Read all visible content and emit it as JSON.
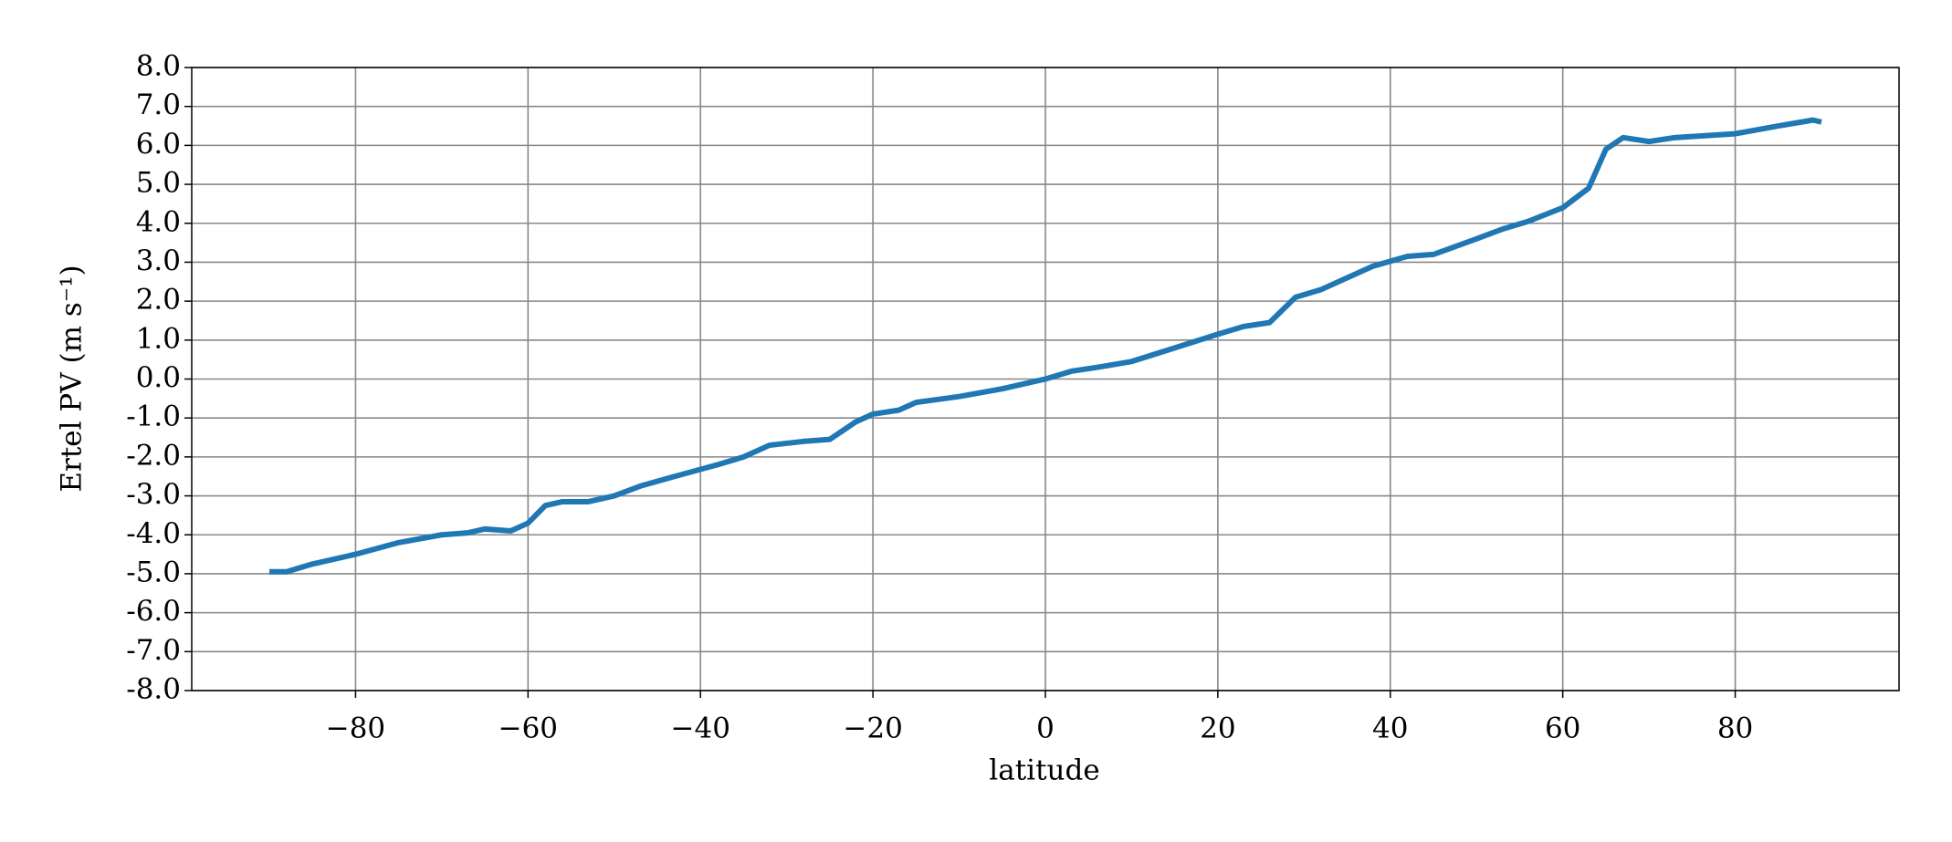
{
  "chart_data": {
    "type": "line",
    "xlabel": "latitude",
    "ylabel": "Ertel PV (m s⁻¹)",
    "series": [
      {
        "name": "Ertel PV",
        "color": "#1f77b4",
        "x": [
          -90,
          -88,
          -85,
          -80,
          -75,
          -70,
          -67,
          -65,
          -62,
          -60,
          -58,
          -56,
          -53,
          -50,
          -47,
          -43,
          -38,
          -35,
          -32,
          -28,
          -25,
          -22,
          -20,
          -17,
          -15,
          -10,
          -5,
          0,
          3,
          6,
          10,
          15,
          20,
          23,
          26,
          29,
          32,
          35,
          38,
          42,
          45,
          50,
          53,
          56,
          60,
          63,
          65,
          67,
          70,
          73,
          80,
          85,
          89,
          90
        ],
        "values": [
          -4.95,
          -4.95,
          -4.75,
          -4.5,
          -4.2,
          -4.0,
          -3.95,
          -3.85,
          -3.9,
          -3.7,
          -3.25,
          -3.15,
          -3.15,
          -3.0,
          -2.75,
          -2.5,
          -2.2,
          -2.0,
          -1.7,
          -1.6,
          -1.55,
          -1.1,
          -0.9,
          -0.8,
          -0.6,
          -0.45,
          -0.25,
          0.0,
          0.2,
          0.3,
          0.45,
          0.8,
          1.15,
          1.35,
          1.45,
          2.1,
          2.3,
          2.6,
          2.9,
          3.15,
          3.2,
          3.6,
          3.85,
          4.05,
          4.4,
          4.9,
          5.9,
          6.2,
          6.1,
          6.2,
          6.3,
          6.5,
          6.65,
          6.6
        ]
      }
    ],
    "xlim": [
      -99,
      99
    ],
    "ylim": [
      -8,
      8
    ],
    "xticks": [
      {
        "value": -80,
        "label": "−80"
      },
      {
        "value": -60,
        "label": "−60"
      },
      {
        "value": -40,
        "label": "−40"
      },
      {
        "value": -20,
        "label": "−20"
      },
      0,
      20,
      40,
      60,
      80
    ],
    "yticks": [
      {
        "value": 8,
        "label": "8.0"
      },
      {
        "value": 7,
        "label": "7.0"
      },
      {
        "value": 6,
        "label": "6.0"
      },
      {
        "value": 5,
        "label": "5.0"
      },
      {
        "value": 4,
        "label": "4.0"
      },
      {
        "value": 3,
        "label": "3.0"
      },
      {
        "value": 2,
        "label": "2.0"
      },
      {
        "value": 1,
        "label": "1.0"
      },
      {
        "value": 0,
        "label": "0.0"
      },
      {
        "value": -1,
        "label": "-1.0"
      },
      {
        "value": -2,
        "label": "-2.0"
      },
      {
        "value": -3,
        "label": "-3.0"
      },
      {
        "value": -4,
        "label": "-4.0"
      },
      {
        "value": -5,
        "label": "-5.0"
      },
      {
        "value": -6,
        "label": "-6.0"
      },
      {
        "value": -7,
        "label": "-7.0"
      },
      {
        "value": -8,
        "label": "-8.0"
      }
    ],
    "grid": true
  }
}
